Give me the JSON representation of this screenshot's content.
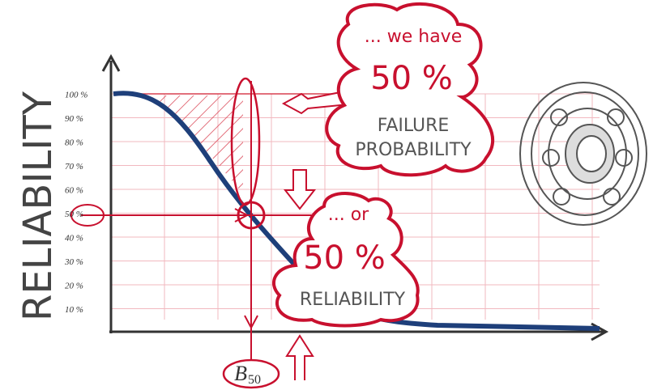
{
  "y_axis_label": "RELIABILITY",
  "y_ticks": [
    "100 %",
    "90 %",
    "80 %",
    "70 %",
    "60 %",
    "50 %",
    "40 %",
    "30 %",
    "20 %",
    "10 %"
  ],
  "bubbles": [
    {
      "intro": "... we have",
      "value": "50 %",
      "line1": "FAILURE",
      "line2": "PROBABILITY"
    },
    {
      "intro": "... or",
      "value": "50 %",
      "line1": "RELIABILITY"
    }
  ],
  "marker": {
    "letter": "B",
    "subscript": "50"
  }
}
